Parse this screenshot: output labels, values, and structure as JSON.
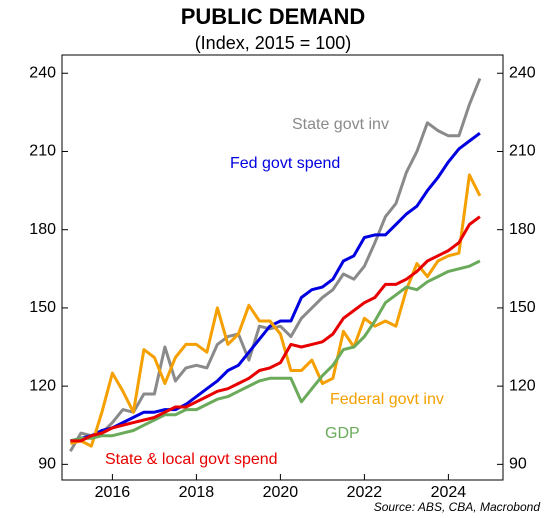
{
  "chart_data": {
    "type": "line",
    "title": "PUBLIC DEMAND",
    "subtitle": "(Index, 2015 = 100)",
    "source": "Source: ABS, CBA, Macrobond",
    "x": [
      2015,
      2015.25,
      2015.5,
      2015.75,
      2016,
      2016.25,
      2016.5,
      2016.75,
      2017,
      2017.25,
      2017.5,
      2017.75,
      2018,
      2018.25,
      2018.5,
      2018.75,
      2019,
      2019.25,
      2019.5,
      2019.75,
      2020,
      2020.25,
      2020.5,
      2020.75,
      2021,
      2021.25,
      2021.5,
      2021.75,
      2022,
      2022.25,
      2022.5,
      2022.75,
      2023,
      2023.25,
      2023.5,
      2023.75,
      2024,
      2024.25,
      2024.5,
      2024.75
    ],
    "xlim": [
      2014.8,
      2025.3
    ],
    "xticks": [
      2016,
      2018,
      2020,
      2022,
      2024
    ],
    "ylim": [
      84,
      247
    ],
    "yticks": [
      90,
      120,
      150,
      180,
      210,
      240
    ],
    "series": [
      {
        "name": "State govt inv",
        "color": "#8a8a8a",
        "values": [
          95,
          102,
          101,
          102,
          106,
          111,
          110,
          117,
          117,
          135,
          122,
          127,
          128,
          127,
          136,
          139,
          140,
          130,
          143,
          142,
          143,
          139,
          146,
          150,
          154,
          157,
          163,
          161,
          166,
          175,
          185,
          190,
          202,
          210,
          221,
          218,
          216,
          216,
          228,
          238
        ]
      },
      {
        "name": "Fed govt spend",
        "color": "#0000e0",
        "values": [
          99,
          100,
          101,
          103,
          104,
          106,
          108,
          110,
          110,
          111,
          111,
          113,
          116,
          119,
          122,
          126,
          128,
          133,
          138,
          143,
          145,
          145,
          154,
          157,
          158,
          161,
          168,
          170,
          177,
          178,
          178,
          182,
          186,
          189,
          195,
          200,
          206,
          211,
          214,
          217
        ]
      },
      {
        "name": "Federal govt inv",
        "color": "#f5a000",
        "values": [
          98,
          99,
          97,
          110,
          125,
          118,
          110,
          134,
          131,
          121,
          131,
          136,
          136,
          133,
          150,
          136,
          140,
          151,
          145,
          145,
          140,
          126,
          126,
          130,
          121,
          123,
          141,
          135,
          146,
          143,
          145,
          143,
          157,
          167,
          162,
          168,
          170,
          171,
          201,
          193
        ]
      },
      {
        "name": "GDP",
        "color": "#6aaa5a",
        "values": [
          99,
          100,
          100,
          101,
          101,
          102,
          103,
          105,
          107,
          109,
          109,
          111,
          111,
          113,
          115,
          116,
          118,
          120,
          122,
          123,
          123,
          123,
          114,
          119,
          124,
          128,
          134,
          135,
          139,
          145,
          152,
          155,
          158,
          157,
          160,
          162,
          164,
          165,
          166,
          168
        ]
      },
      {
        "name": "State & local govt spend",
        "color": "#e80000",
        "values": [
          99,
          99,
          101,
          102,
          104,
          105,
          106,
          107,
          108,
          110,
          112,
          112,
          114,
          116,
          118,
          119,
          121,
          123,
          126,
          127,
          129,
          136,
          135,
          136,
          137,
          140,
          146,
          149,
          152,
          154,
          159,
          159,
          161,
          164,
          168,
          170,
          172,
          175,
          182,
          185
        ]
      }
    ]
  }
}
